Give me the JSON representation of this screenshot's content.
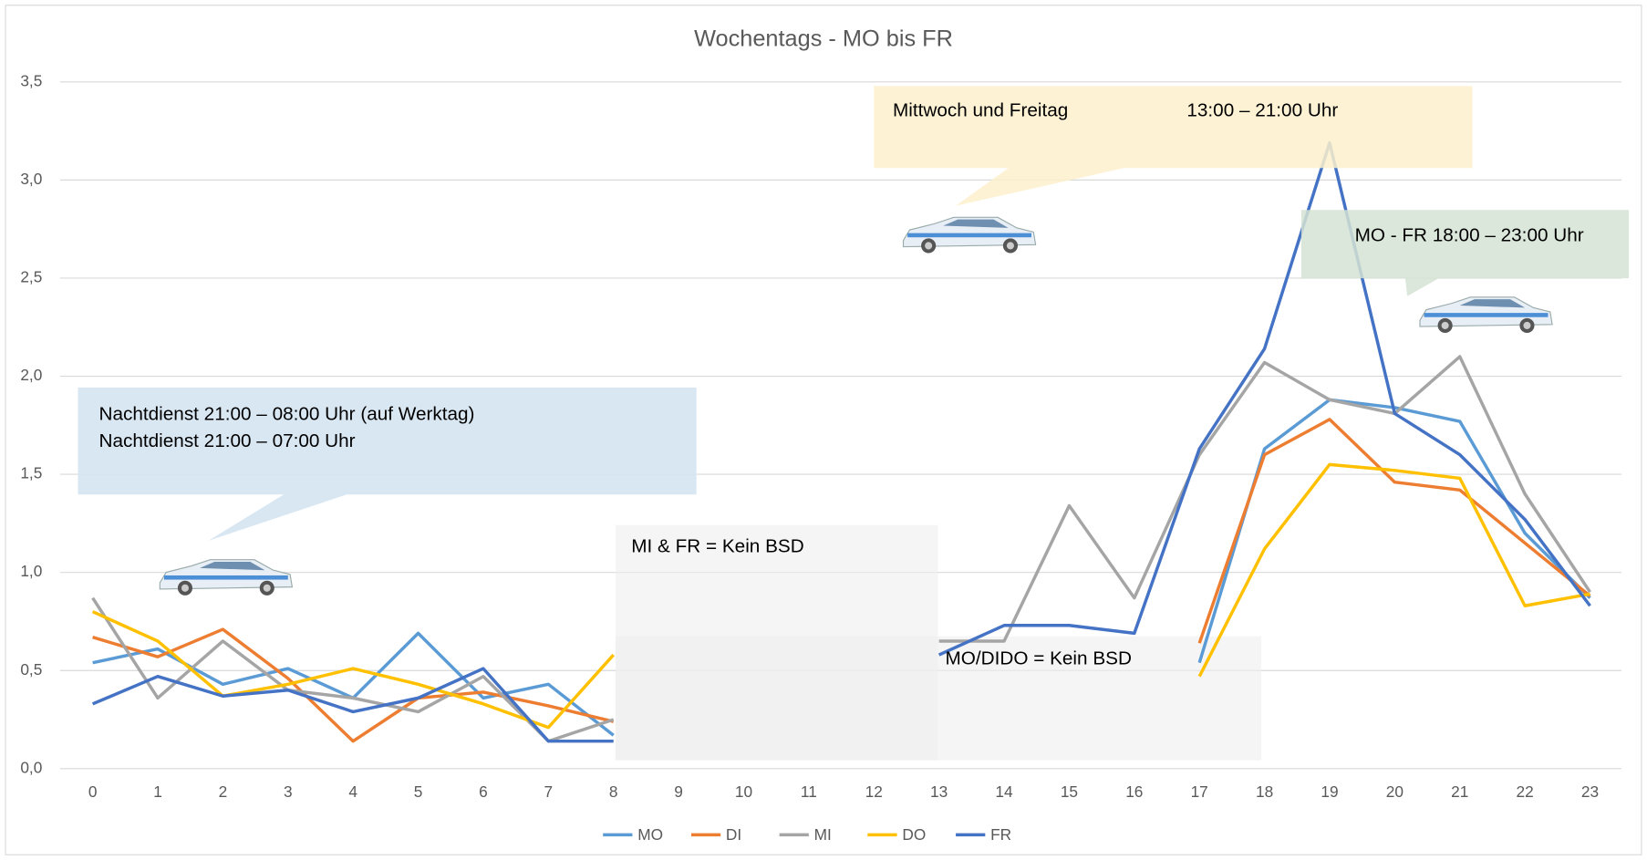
{
  "chart_data": {
    "type": "line",
    "title": "Wochentags - MO bis FR",
    "categories": [
      "0",
      "1",
      "2",
      "3",
      "4",
      "5",
      "6",
      "7",
      "8",
      "9",
      "10",
      "11",
      "12",
      "13",
      "14",
      "15",
      "16",
      "17",
      "18",
      "19",
      "20",
      "21",
      "22",
      "23"
    ],
    "series": [
      {
        "name": "MO",
        "color": "#5b9bd5",
        "values": [
          0.54,
          0.61,
          0.43,
          0.51,
          0.36,
          0.69,
          0.36,
          0.43,
          0.17,
          null,
          null,
          null,
          null,
          null,
          null,
          null,
          null,
          0.54,
          1.63,
          1.88,
          1.84,
          1.77,
          1.2,
          0.87
        ]
      },
      {
        "name": "DI",
        "color": "#ed7d31",
        "values": [
          0.67,
          0.57,
          0.71,
          0.46,
          0.14,
          0.36,
          0.39,
          0.32,
          0.24,
          null,
          null,
          null,
          null,
          null,
          null,
          null,
          null,
          0.64,
          1.6,
          1.78,
          1.46,
          1.42,
          1.15,
          0.88
        ]
      },
      {
        "name": "MI",
        "color": "#a5a5a5",
        "values": [
          0.87,
          0.36,
          0.65,
          0.4,
          0.36,
          0.29,
          0.47,
          0.14,
          0.25,
          null,
          null,
          null,
          null,
          0.65,
          0.65,
          1.34,
          0.87,
          1.6,
          2.07,
          1.88,
          1.81,
          2.1,
          1.4,
          0.9
        ]
      },
      {
        "name": "DO",
        "color": "#ffc000",
        "values": [
          0.8,
          0.65,
          0.37,
          0.43,
          0.51,
          0.43,
          0.33,
          0.21,
          0.58,
          null,
          null,
          null,
          null,
          null,
          null,
          null,
          null,
          0.47,
          1.12,
          1.55,
          1.52,
          1.48,
          0.83,
          0.89
        ]
      },
      {
        "name": "FR",
        "color": "#4472c4",
        "values": [
          0.33,
          0.47,
          0.37,
          0.4,
          0.29,
          0.36,
          0.51,
          0.14,
          0.14,
          null,
          null,
          null,
          null,
          0.58,
          0.73,
          0.73,
          0.69,
          1.63,
          2.14,
          3.19,
          1.81,
          1.6,
          1.27,
          0.83
        ]
      }
    ],
    "ylim": [
      0,
      3.5
    ],
    "yticks": [
      {
        "value": 0,
        "label": "0,0"
      },
      {
        "value": 0.5,
        "label": "0,5"
      },
      {
        "value": 1,
        "label": "1,0"
      },
      {
        "value": 1.5,
        "label": "1,5"
      },
      {
        "value": 2,
        "label": "2,0"
      },
      {
        "value": 2.5,
        "label": "2,5"
      },
      {
        "value": 3,
        "label": "3,0"
      },
      {
        "value": 3.5,
        "label": "3,5"
      }
    ],
    "grid": true,
    "legend": "bottom",
    "annotations": [
      "Mittwoch und Freitag",
      "13:00 – 21:00 Uhr",
      "MO - FR  18:00 – 23:00 Uhr",
      "Nachtdienst 21:00 – 08:00 Uhr (auf Werktag)",
      "Nachtdienst 21:00 – 07:00 Uhr",
      "MI & FR = Kein BSD",
      "MO/DIDO = Kein BSD"
    ]
  }
}
